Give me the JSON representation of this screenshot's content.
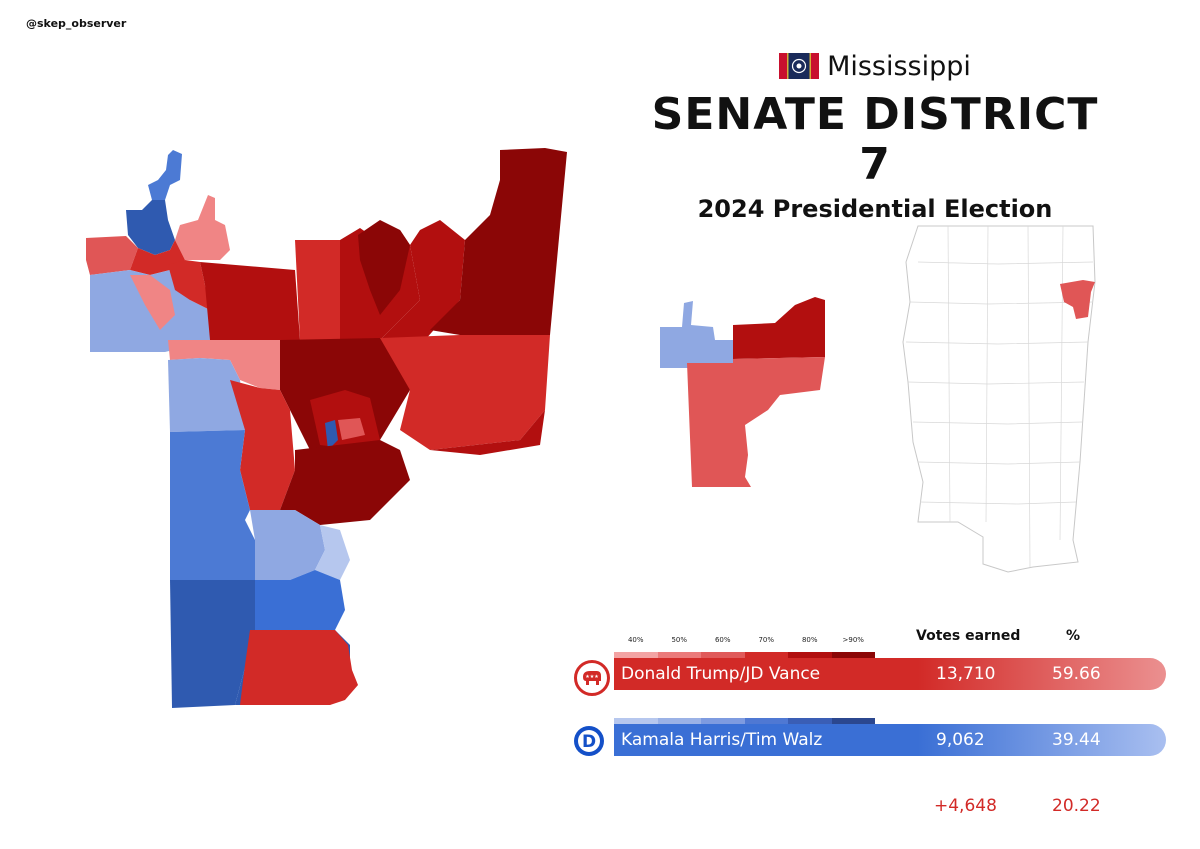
{
  "handle": "@skep_observer",
  "header": {
    "state": "Mississippi",
    "title": "SENATE DISTRICT 7",
    "subtitle": "2024 Presidential Election"
  },
  "legend": {
    "scale_labels": [
      "40%",
      "50%",
      "60%",
      "70%",
      "80%",
      ">90%"
    ],
    "red_scale": [
      "#f3a3a3",
      "#eb7a7a",
      "#e05a5a",
      "#d22a27",
      "#b20f0f",
      "#8b0606"
    ],
    "blue_scale": [
      "#b6c7ee",
      "#9bb2e6",
      "#7e9be0",
      "#4f78d3",
      "#3a5eb5",
      "#2b478f"
    ],
    "votes_header": "Votes earned",
    "pct_header": "%"
  },
  "candidates": [
    {
      "name": "Donald Trump/JD Vance",
      "votes": "13,710",
      "pct": "59.66",
      "party_icon": "gop-elephant-icon",
      "color": "#d22a27"
    },
    {
      "name": "Kamala Harris/Tim Walz",
      "votes": "9,062",
      "pct": "39.44",
      "party_icon": "dem-d-icon",
      "color": "#3a6fd5"
    }
  ],
  "margin": {
    "votes": "+4,648",
    "pct": "20.22"
  },
  "colors": {
    "r40": "#f08585",
    "r50": "#ec8a8a",
    "r60": "#e05656",
    "r70": "#d22a27",
    "r80": "#b20f0f",
    "r90": "#8b0606",
    "d40": "#b6c7ee",
    "d50": "#8fa8e2",
    "d60": "#4c7ad4",
    "d70": "#3a6fd5",
    "d80": "#2f5ab0",
    "d90": "#2b478f"
  }
}
